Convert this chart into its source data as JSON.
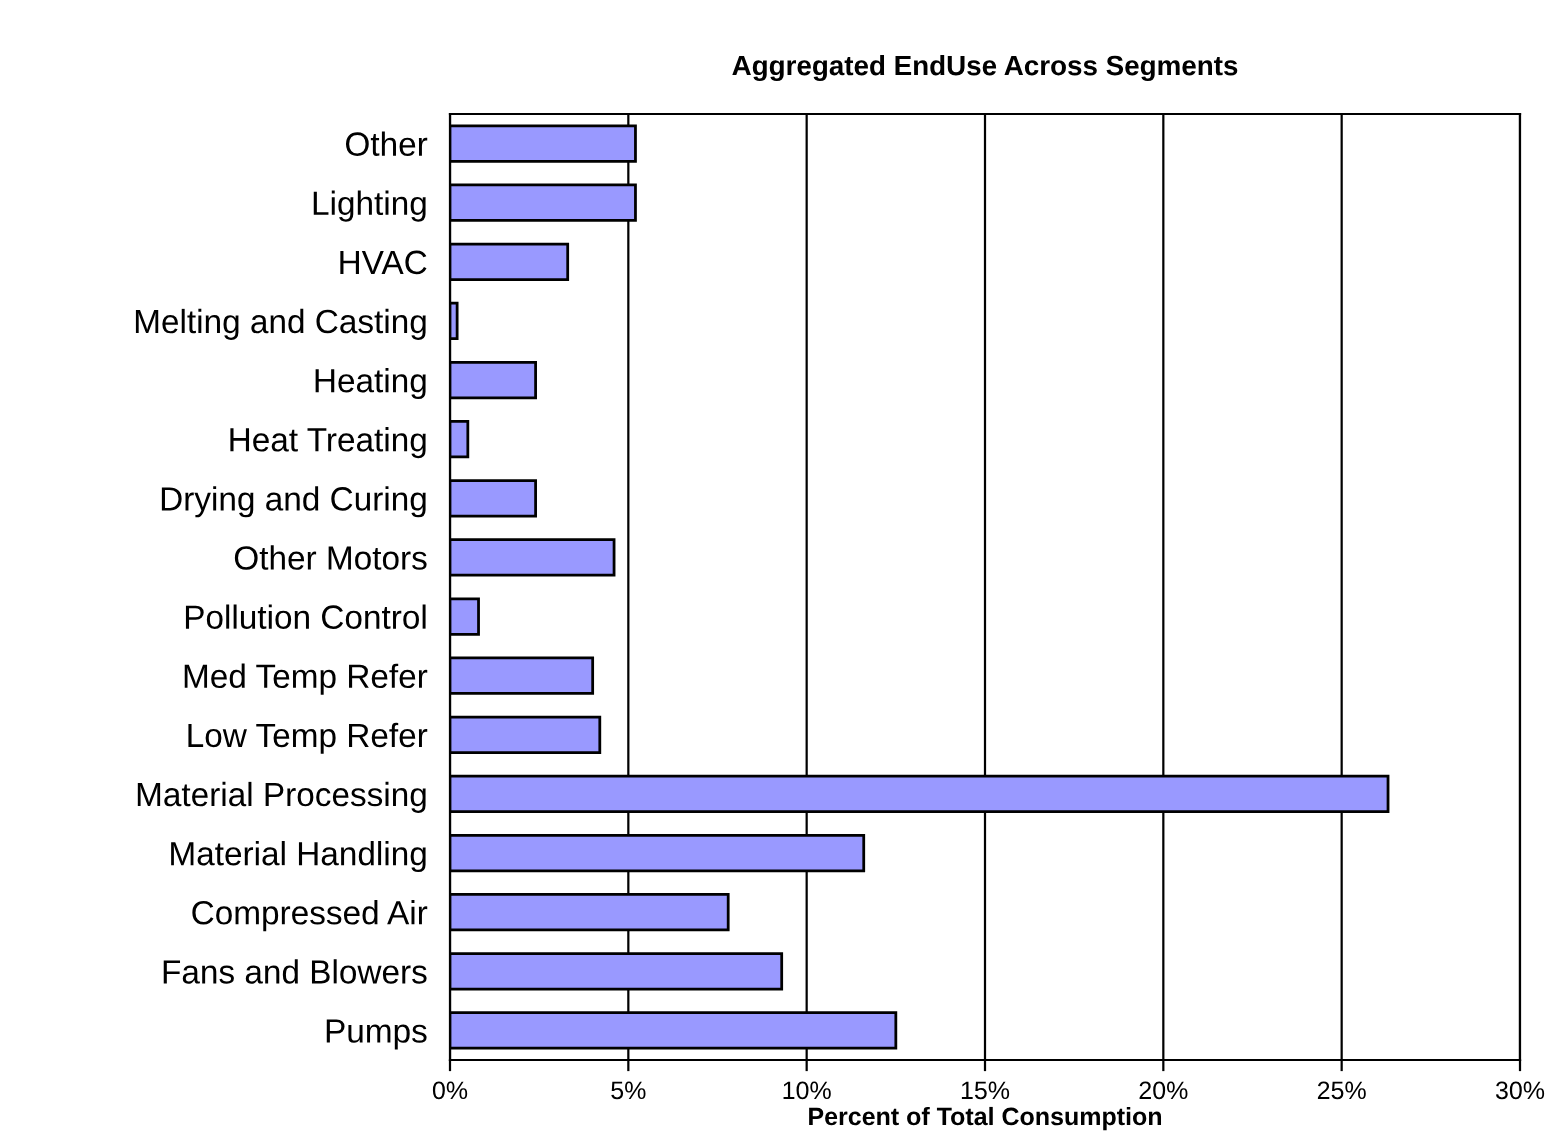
{
  "chart_data": {
    "type": "bar",
    "orientation": "horizontal",
    "title": "Aggregated EndUse Across Segments",
    "xlabel": "Percent of Total Consumption",
    "categories": [
      "Other",
      "Lighting",
      "HVAC",
      "Melting and Casting",
      "Heating",
      "Heat Treating",
      "Drying and Curing",
      "Other Motors",
      "Pollution Control",
      "Med Temp Refer",
      "Low Temp Refer",
      "Material Processing",
      "Material Handling",
      "Compressed Air",
      "Fans and Blowers",
      "Pumps"
    ],
    "values": [
      5.2,
      5.2,
      3.3,
      0.2,
      2.4,
      0.5,
      2.4,
      4.6,
      0.8,
      4.0,
      4.2,
      26.3,
      11.6,
      7.8,
      9.3,
      12.5
    ],
    "color": "#9999ff",
    "xlim": [
      0,
      30
    ],
    "xticks": [
      {
        "value": 0,
        "label": "0%"
      },
      {
        "value": 5,
        "label": "5%"
      },
      {
        "value": 10,
        "label": "10%"
      },
      {
        "value": 15,
        "label": "15%"
      },
      {
        "value": 20,
        "label": "20%"
      },
      {
        "value": 25,
        "label": "25%"
      },
      {
        "value": 30,
        "label": "30%"
      }
    ],
    "grid": "x"
  }
}
